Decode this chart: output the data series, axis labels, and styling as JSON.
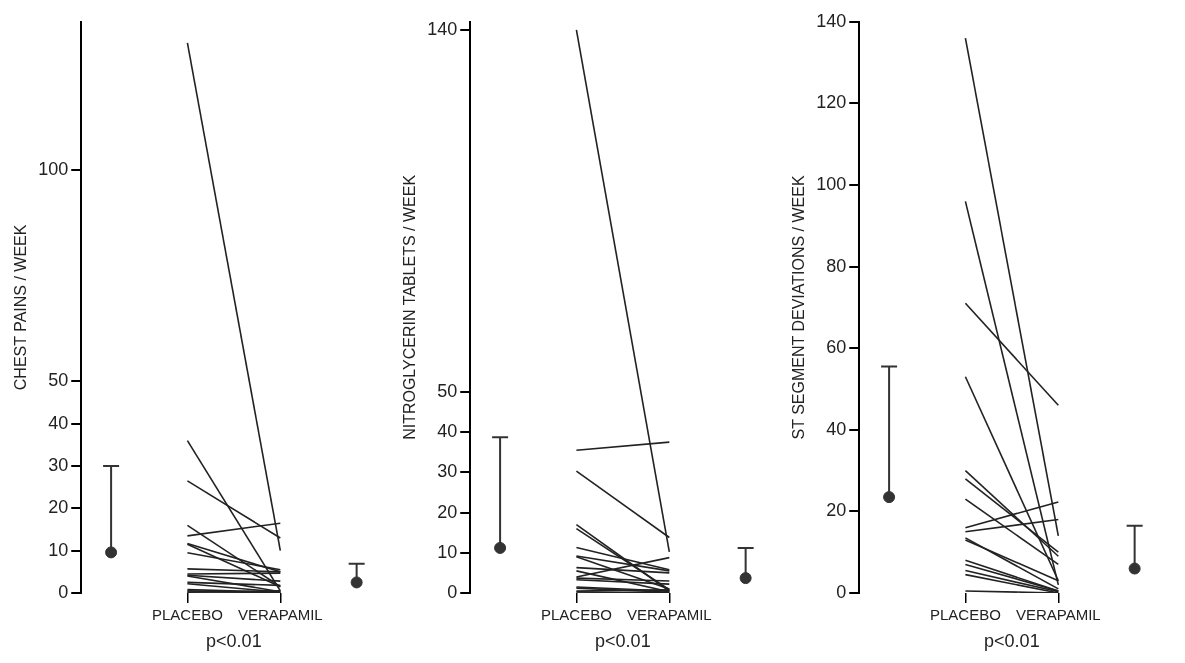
{
  "chart_data": [
    {
      "type": "line",
      "ylabel": "CHEST PAINS / WEEK",
      "categories": [
        null,
        "PLACEBO",
        "VERAPAMIL",
        null
      ],
      "ylim": [
        0,
        135
      ],
      "yticks": [
        0,
        10,
        20,
        30,
        40,
        50,
        100
      ],
      "grid": false,
      "legend": false,
      "marker": "none",
      "annotations": [
        "p<0.01"
      ],
      "series": [
        {
          "color": "#222222",
          "values": [
            null,
            130,
            10,
            null
          ]
        },
        {
          "color": "#222222",
          "values": [
            null,
            36,
            0.5,
            null
          ]
        },
        {
          "color": "#222222",
          "values": [
            null,
            26.5,
            13,
            null
          ]
        },
        {
          "color": "#222222",
          "values": [
            null,
            13.5,
            16.5,
            null
          ]
        },
        {
          "color": "#222222",
          "values": [
            null,
            16,
            1.5,
            null
          ]
        },
        {
          "color": "#222222",
          "values": [
            null,
            11.7,
            5,
            null
          ]
        },
        {
          "color": "#222222",
          "values": [
            null,
            11.5,
            1.5,
            null
          ]
        },
        {
          "color": "#222222",
          "values": [
            null,
            9.5,
            5.5,
            null
          ]
        },
        {
          "color": "#222222",
          "values": [
            null,
            5.7,
            5,
            null
          ]
        },
        {
          "color": "#222222",
          "values": [
            null,
            4.5,
            4.7,
            null
          ]
        },
        {
          "color": "#222222",
          "values": [
            null,
            4.2,
            2.8,
            null
          ]
        },
        {
          "color": "#222222",
          "values": [
            null,
            4,
            0.3,
            null
          ]
        },
        {
          "color": "#222222",
          "values": [
            null,
            2.5,
            1.8,
            null
          ]
        },
        {
          "color": "#222222",
          "values": [
            null,
            2.2,
            0.2,
            null
          ]
        },
        {
          "color": "#222222",
          "values": [
            null,
            0.8,
            0.2,
            null
          ]
        },
        {
          "color": "#222222",
          "values": [
            null,
            0.5,
            0,
            null
          ]
        },
        {
          "color": "#222222",
          "values": [
            null,
            0.2,
            0.5,
            null
          ]
        },
        {
          "color": "#222222",
          "values": [
            null,
            0,
            0,
            null
          ]
        },
        {
          "type": "scatter",
          "marker": "circle",
          "color": "#333333",
          "values": [
            9.6,
            null,
            null,
            2.5
          ],
          "errors": [
            [
              9.6,
              30
            ],
            null,
            null,
            [
              2.5,
              6.9
            ]
          ]
        }
      ]
    },
    {
      "type": "line",
      "ylabel": "NITROGLYCERIN TABLETS / WEEK",
      "categories": [
        null,
        "PLACEBO",
        "VERAPAMIL",
        null
      ],
      "ylim": [
        0,
        142
      ],
      "yticks": [
        0,
        10,
        20,
        30,
        40,
        50,
        140
      ],
      "grid": false,
      "legend": false,
      "marker": "none",
      "annotations": [
        "p<0.01"
      ],
      "series": [
        {
          "color": "#222222",
          "values": [
            null,
            140,
            10.2,
            null
          ]
        },
        {
          "color": "#222222",
          "values": [
            null,
            35.5,
            37.5,
            null
          ]
        },
        {
          "color": "#222222",
          "values": [
            null,
            30.3,
            13.8,
            null
          ]
        },
        {
          "color": "#222222",
          "values": [
            null,
            17,
            0.5,
            null
          ]
        },
        {
          "color": "#222222",
          "values": [
            null,
            16,
            0.8,
            null
          ]
        },
        {
          "color": "#222222",
          "values": [
            null,
            11.3,
            5.8,
            null
          ]
        },
        {
          "color": "#222222",
          "values": [
            null,
            9.2,
            5.5,
            null
          ]
        },
        {
          "color": "#222222",
          "values": [
            null,
            9,
            1,
            null
          ]
        },
        {
          "color": "#222222",
          "values": [
            null,
            6.3,
            5,
            null
          ]
        },
        {
          "color": "#222222",
          "values": [
            null,
            5.5,
            0.3,
            null
          ]
        },
        {
          "color": "#222222",
          "values": [
            null,
            4,
            8.8,
            null
          ]
        },
        {
          "color": "#222222",
          "values": [
            null,
            3.7,
            3,
            null
          ]
        },
        {
          "color": "#222222",
          "values": [
            null,
            3.3,
            2.2,
            null
          ]
        },
        {
          "color": "#222222",
          "values": [
            null,
            1.5,
            0.5,
            null
          ]
        },
        {
          "color": "#222222",
          "values": [
            null,
            1.2,
            0.2,
            null
          ]
        },
        {
          "color": "#222222",
          "values": [
            null,
            0.5,
            0.8,
            null
          ]
        },
        {
          "color": "#222222",
          "values": [
            null,
            0.3,
            0,
            null
          ]
        },
        {
          "color": "#222222",
          "values": [
            null,
            0,
            0.2,
            null
          ]
        },
        {
          "type": "scatter",
          "marker": "circle",
          "color": "#333333",
          "values": [
            11.2,
            null,
            null,
            3.7
          ],
          "errors": [
            [
              11.2,
              38.7
            ],
            null,
            null,
            [
              3.7,
              11.2
            ]
          ]
        }
      ]
    },
    {
      "type": "line",
      "ylabel": "ST SEGMENT DEVIATIONS / WEEK",
      "categories": [
        null,
        "PLACEBO",
        "VERAPAMIL",
        null
      ],
      "ylim": [
        0,
        140
      ],
      "yticks": [
        0,
        20,
        40,
        60,
        80,
        100,
        120,
        140
      ],
      "grid": false,
      "legend": false,
      "marker": "none",
      "annotations": [
        "p<0.01"
      ],
      "series": [
        {
          "color": "#222222",
          "values": [
            null,
            136,
            14,
            null
          ]
        },
        {
          "color": "#222222",
          "values": [
            null,
            96,
            2,
            null
          ]
        },
        {
          "color": "#222222",
          "values": [
            null,
            71,
            46,
            null
          ]
        },
        {
          "color": "#222222",
          "values": [
            null,
            53,
            3,
            null
          ]
        },
        {
          "color": "#222222",
          "values": [
            null,
            30,
            9,
            null
          ]
        },
        {
          "color": "#222222",
          "values": [
            null,
            28,
            10,
            null
          ]
        },
        {
          "color": "#222222",
          "values": [
            null,
            23,
            7,
            null
          ]
        },
        {
          "color": "#222222",
          "values": [
            null,
            16,
            22.3,
            null
          ]
        },
        {
          "color": "#222222",
          "values": [
            null,
            15,
            18,
            null
          ]
        },
        {
          "color": "#222222",
          "values": [
            null,
            13.5,
            1,
            null
          ]
        },
        {
          "color": "#222222",
          "values": [
            null,
            13,
            3,
            null
          ]
        },
        {
          "color": "#222222",
          "values": [
            null,
            8,
            0.5,
            null
          ]
        },
        {
          "color": "#222222",
          "values": [
            null,
            7,
            0.5,
            null
          ]
        },
        {
          "color": "#222222",
          "values": [
            null,
            5.5,
            0.3,
            null
          ]
        },
        {
          "color": "#222222",
          "values": [
            null,
            4.5,
            0,
            null
          ]
        },
        {
          "color": "#222222",
          "values": [
            null,
            0.5,
            0,
            null
          ]
        },
        {
          "type": "scatter",
          "marker": "circle",
          "color": "#333333",
          "values": [
            23.5,
            null,
            null,
            6
          ],
          "errors": [
            [
              23.5,
              55.5
            ],
            null,
            null,
            [
              6,
              16.5
            ]
          ]
        }
      ]
    }
  ]
}
